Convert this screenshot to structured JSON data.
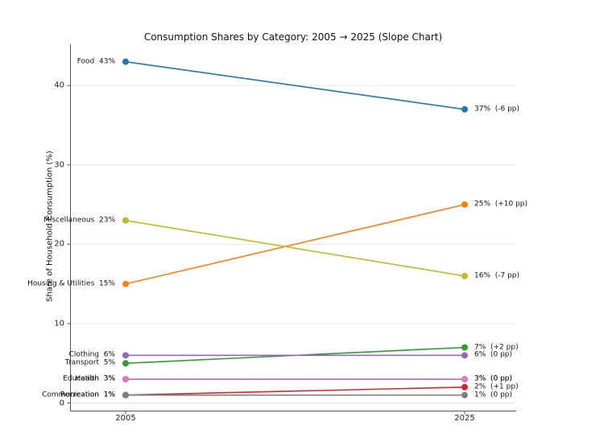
{
  "chart_data": {
    "type": "line",
    "subtype": "slope-chart",
    "title": "Consumption Shares by Category: 2005 → 2025 (Slope Chart)",
    "xlabel": "",
    "ylabel": "Share of Household Consumption (%)",
    "x_categories": [
      "2005",
      "2025"
    ],
    "y_ticks": [
      0,
      10,
      20,
      30,
      40
    ],
    "ylim": [
      -1.2,
      45.2
    ],
    "grid": true,
    "legend_position": "none (series labeled directly at line endpoints)",
    "series": [
      {
        "name": "Food",
        "values": [
          43,
          37
        ],
        "delta_label": "-6 pp",
        "color": "#1f77b4"
      },
      {
        "name": "Housing & Utilities",
        "values": [
          15,
          25
        ],
        "delta_label": "+10 pp",
        "color": "#ff7f0e"
      },
      {
        "name": "Transport",
        "values": [
          5,
          7
        ],
        "delta_label": "+2 pp",
        "color": "#2ca02c"
      },
      {
        "name": "Communication",
        "values": [
          1,
          2
        ],
        "delta_label": "+1 pp",
        "color": "#d62728"
      },
      {
        "name": "Clothing",
        "values": [
          6,
          6
        ],
        "delta_label": "0 pp",
        "color": "#9467bd"
      },
      {
        "name": "Education",
        "values": [
          3,
          3
        ],
        "delta_label": "0 pp",
        "color": "#8c564b"
      },
      {
        "name": "Health",
        "values": [
          3,
          3
        ],
        "delta_label": "0 pp",
        "color": "#e377c2"
      },
      {
        "name": "Recreation",
        "values": [
          1,
          1
        ],
        "delta_label": "0 pp",
        "color": "#7f7f7f"
      },
      {
        "name": "Miscellaneous",
        "values": [
          23,
          16
        ],
        "delta_label": "-7 pp",
        "color": "#bcbd22"
      }
    ],
    "left_endpoint_label_format": "{name}  {value}%",
    "right_endpoint_label_format": "{value}%  ({delta})"
  }
}
